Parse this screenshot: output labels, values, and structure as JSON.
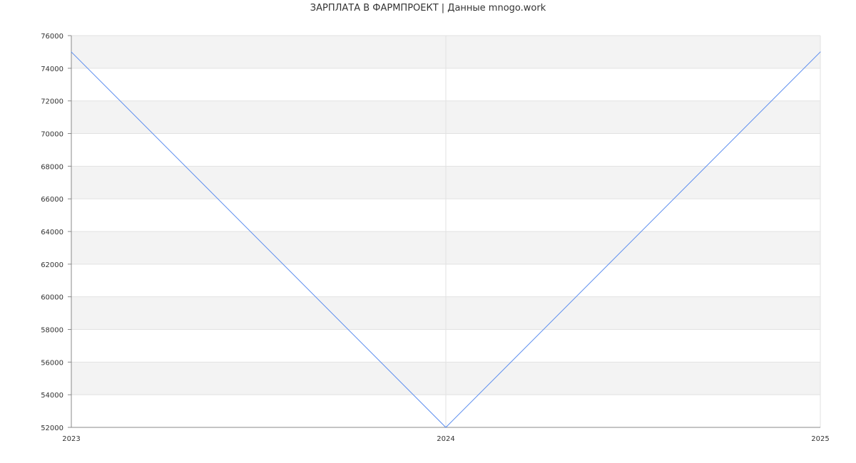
{
  "chart_data": {
    "type": "line",
    "title": "ЗАРПЛАТА В ФАРМПРОЕКТ | Данные mnogo.work",
    "xlabel": "",
    "ylabel": "",
    "categories": [
      "2023",
      "2024",
      "2025"
    ],
    "series": [
      {
        "values": [
          75000,
          52000,
          75000
        ],
        "color": "#5b8def"
      }
    ],
    "ylim": [
      52000,
      76000
    ],
    "yticks": [
      52000,
      54000,
      56000,
      58000,
      60000,
      62000,
      64000,
      66000,
      68000,
      70000,
      72000,
      74000,
      76000
    ],
    "grid": true,
    "band_color": "#f3f3f3",
    "legend": "none"
  }
}
